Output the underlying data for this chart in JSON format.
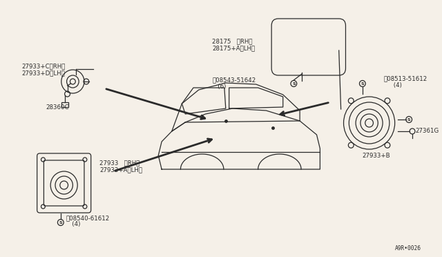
{
  "bg_color": "#f5f0e8",
  "line_color": "#2a2a2a",
  "lw": 0.9,
  "fs": 6.2,
  "diagram_ref": "A9R•0026",
  "labels": {
    "tl1": "27933+C〈RH〉",
    "tl2": "27933+D〈LH〉",
    "tl_conn": "28360C",
    "bl1": "27933   〈RH〉",
    "bl2": "27933+A〈LH〉",
    "bl_screw": "Ⓓ08540-61612",
    "bl_screw2": "   (4)",
    "tc1": "28175   〈RH〉",
    "tc2": "28175+A〈LH〉",
    "cs1": "Ⓓ08543-51642",
    "cs2": "   (6)",
    "rs1": "Ⓓ08513-51612",
    "rs2": "     (4)",
    "rb": "27933+B",
    "rg": "27361G"
  }
}
